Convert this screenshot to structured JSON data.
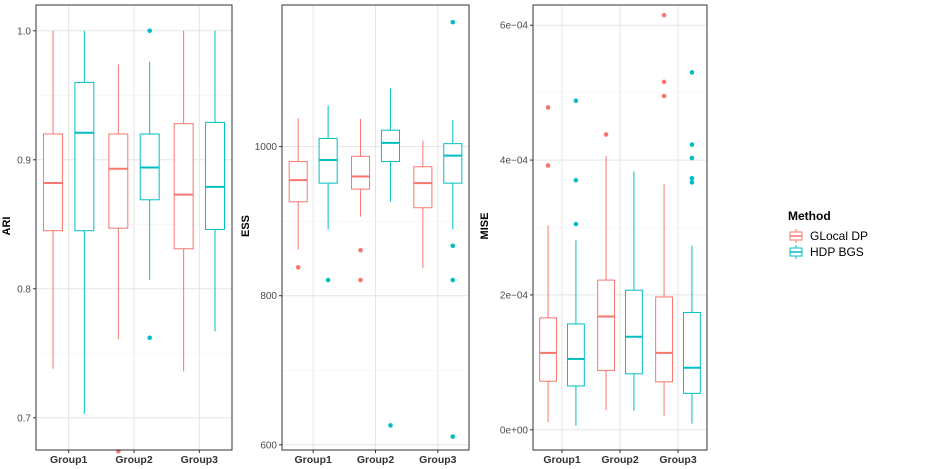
{
  "chart_data": [
    {
      "type": "boxplot",
      "ylabel": "ARI",
      "ylim": [
        0.675,
        1.02
      ],
      "yticks": [
        0.7,
        0.8,
        0.9,
        1.0
      ],
      "ytick_labels": [
        "0.7",
        "0.8",
        "0.9",
        "1.0"
      ],
      "categories": [
        "Group1",
        "Group2",
        "Group3"
      ],
      "series": [
        {
          "name": "GLocal DP",
          "boxes": [
            {
              "q1": 0.845,
              "median": 0.882,
              "q3": 0.92,
              "lower": 0.738,
              "upper": 1.0,
              "outliers": []
            },
            {
              "q1": 0.847,
              "median": 0.893,
              "q3": 0.92,
              "lower": 0.761,
              "upper": 0.974,
              "outliers": [
                0.674
              ]
            },
            {
              "q1": 0.831,
              "median": 0.873,
              "q3": 0.928,
              "lower": 0.736,
              "upper": 1.0,
              "outliers": []
            }
          ]
        },
        {
          "name": "HDP BGS",
          "boxes": [
            {
              "q1": 0.845,
              "median": 0.921,
              "q3": 0.96,
              "lower": 0.703,
              "upper": 1.0,
              "outliers": []
            },
            {
              "q1": 0.869,
              "median": 0.894,
              "q3": 0.92,
              "lower": 0.807,
              "upper": 0.976,
              "outliers": [
                1.0,
                0.762
              ]
            },
            {
              "q1": 0.846,
              "median": 0.879,
              "q3": 0.929,
              "lower": 0.767,
              "upper": 1.0,
              "outliers": []
            }
          ]
        }
      ]
    },
    {
      "type": "boxplot",
      "ylabel": "ESS",
      "ylim": [
        593,
        1190
      ],
      "yticks": [
        600,
        800,
        1000
      ],
      "ytick_labels": [
        "600",
        "800",
        "1000"
      ],
      "categories": [
        "Group1",
        "Group2",
        "Group3"
      ],
      "series": [
        {
          "name": "GLocal DP",
          "boxes": [
            {
              "q1": 926,
              "median": 955,
              "q3": 980,
              "lower": 862,
              "upper": 1038,
              "outliers": [
                838
              ]
            },
            {
              "q1": 943,
              "median": 960,
              "q3": 987,
              "lower": 906,
              "upper": 1037,
              "outliers": [
                861,
                821
              ]
            },
            {
              "q1": 918,
              "median": 951,
              "q3": 973,
              "lower": 837,
              "upper": 1008,
              "outliers": []
            }
          ]
        },
        {
          "name": "HDP BGS",
          "boxes": [
            {
              "q1": 951,
              "median": 982,
              "q3": 1011,
              "lower": 889,
              "upper": 1055,
              "outliers": [
                821
              ]
            },
            {
              "q1": 980,
              "median": 1005,
              "q3": 1022,
              "lower": 926,
              "upper": 1078,
              "outliers": [
                626
              ]
            },
            {
              "q1": 951,
              "median": 988,
              "q3": 1004,
              "lower": 889,
              "upper": 1036,
              "outliers": [
                1167,
                867,
                821,
                611
              ]
            }
          ]
        }
      ]
    },
    {
      "type": "boxplot",
      "ylabel": "MISE",
      "ylim": [
        -3e-05,
        0.00063
      ],
      "yticks": [
        0,
        0.0002,
        0.0004,
        0.0006
      ],
      "ytick_labels": [
        "0e+00",
        "2e−04",
        "4e−04",
        "6e−04"
      ],
      "categories": [
        "Group1",
        "Group2",
        "Group3"
      ],
      "series": [
        {
          "name": "GLocal DP",
          "boxes": [
            {
              "q1": 7.2e-05,
              "median": 0.000114,
              "q3": 0.000166,
              "lower": 1.1e-05,
              "upper": 0.000303,
              "outliers": [
                0.000478,
                0.000392
              ]
            },
            {
              "q1": 8.8e-05,
              "median": 0.000168,
              "q3": 0.000222,
              "lower": 2.9e-05,
              "upper": 0.000406,
              "outliers": [
                0.000438
              ]
            },
            {
              "q1": 7.1e-05,
              "median": 0.000114,
              "q3": 0.000197,
              "lower": 2.1e-05,
              "upper": 0.000364,
              "outliers": [
                0.000615,
                0.000516,
                0.000495
              ]
            }
          ]
        },
        {
          "name": "HDP BGS",
          "boxes": [
            {
              "q1": 6.5e-05,
              "median": 0.000105,
              "q3": 0.000157,
              "lower": 6e-06,
              "upper": 0.000281,
              "outliers": [
                0.000488,
                0.00037,
                0.000305
              ]
            },
            {
              "q1": 8.3e-05,
              "median": 0.000138,
              "q3": 0.000207,
              "lower": 2.8e-05,
              "upper": 0.000383,
              "outliers": []
            },
            {
              "q1": 5.4e-05,
              "median": 9.2e-05,
              "q3": 0.000174,
              "lower": 9e-06,
              "upper": 0.000273,
              "outliers": [
                0.00053,
                0.000423,
                0.000403,
                0.000373,
                0.000367
              ]
            }
          ]
        }
      ]
    }
  ],
  "legend": {
    "title": "Method",
    "items": [
      {
        "label": "GLocal DP",
        "color": "#F8766D"
      },
      {
        "label": "HDP BGS",
        "color": "#00BFC4"
      }
    ]
  }
}
